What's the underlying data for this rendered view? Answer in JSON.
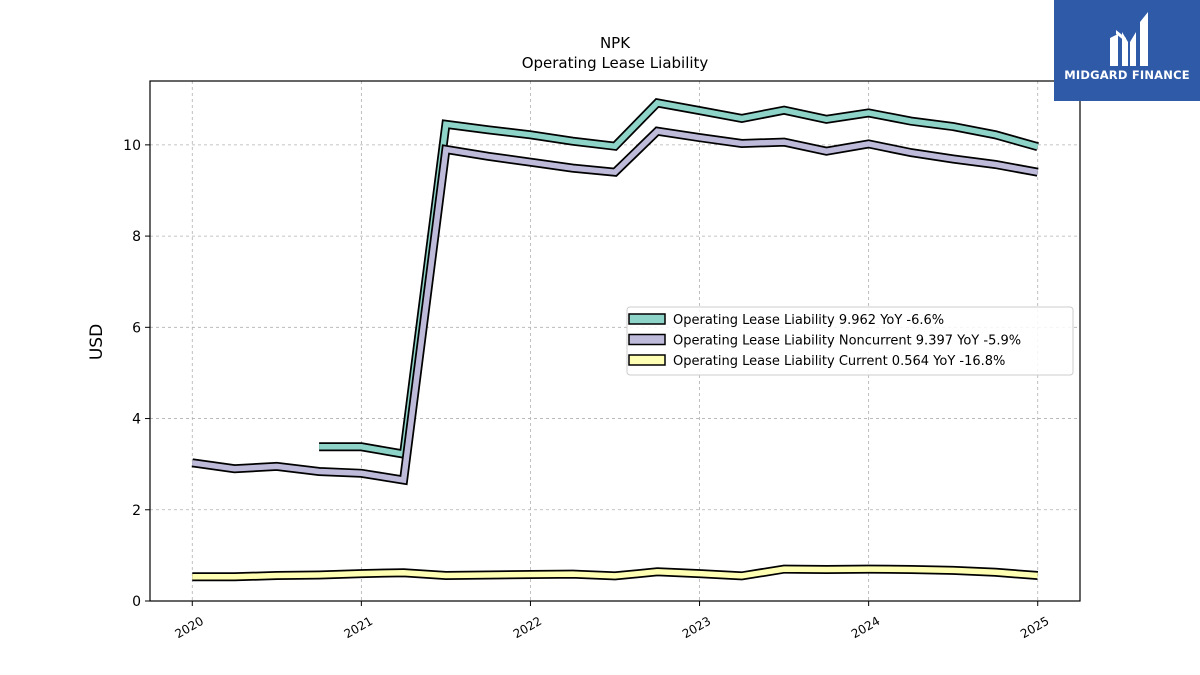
{
  "logo": {
    "text": "MIDGARD FINANCE"
  },
  "chart_data": {
    "type": "line",
    "title": "NPK",
    "subtitle": "Operating Lease Liability",
    "ylabel": "USD",
    "xlabel": "",
    "ylim": [
      0,
      11.4
    ],
    "xlim": [
      2019.75,
      2025.25
    ],
    "yticks": [
      0,
      2,
      4,
      6,
      8,
      10
    ],
    "xticks": [
      "2020",
      "2021",
      "2022",
      "2023",
      "2024",
      "2025"
    ],
    "grid": true,
    "legend_position": "center-right",
    "series": [
      {
        "name": "Operating Lease Liability",
        "legend_label": "Operating Lease Liability  9.962 YoY -6.6%",
        "color": "#8dd3c7",
        "x": [
          2020.75,
          2021.0,
          2021.25,
          2021.5,
          2021.75,
          2022.0,
          2022.25,
          2022.5,
          2022.75,
          2023.0,
          2023.25,
          2023.5,
          2023.75,
          2024.0,
          2024.25,
          2024.5,
          2024.75,
          2025.0
        ],
        "y": [
          3.38,
          3.38,
          3.22,
          10.45,
          10.33,
          10.22,
          10.08,
          9.97,
          10.92,
          10.75,
          10.58,
          10.76,
          10.56,
          10.7,
          10.52,
          10.4,
          10.22,
          9.96
        ]
      },
      {
        "name": "Operating Lease Liability Noncurrent",
        "legend_label": "Operating Lease Liability Noncurrent  9.397 YoY -5.9%",
        "color": "#bebada",
        "x": [
          2020.0,
          2020.25,
          2020.5,
          2020.75,
          2021.0,
          2021.25,
          2021.5,
          2021.75,
          2022.0,
          2022.25,
          2022.5,
          2022.75,
          2023.0,
          2023.25,
          2023.5,
          2023.75,
          2024.0,
          2024.25,
          2024.5,
          2024.75,
          2025.0
        ],
        "y": [
          3.03,
          2.9,
          2.95,
          2.84,
          2.8,
          2.65,
          9.9,
          9.75,
          9.62,
          9.49,
          9.4,
          10.3,
          10.16,
          10.03,
          10.06,
          9.86,
          10.02,
          9.83,
          9.69,
          9.57,
          9.4
        ]
      },
      {
        "name": "Operating Lease Liability Current",
        "legend_label": "Operating Lease Liability Current  0.564 YoY -16.8%",
        "color": "#ffffb3",
        "x": [
          2020.0,
          2020.25,
          2020.5,
          2020.75,
          2021.0,
          2021.25,
          2021.5,
          2021.75,
          2022.0,
          2022.25,
          2022.5,
          2022.75,
          2023.0,
          2023.25,
          2023.5,
          2023.75,
          2024.0,
          2024.25,
          2024.5,
          2024.75,
          2025.0
        ],
        "y": [
          0.53,
          0.53,
          0.56,
          0.57,
          0.6,
          0.62,
          0.56,
          0.57,
          0.58,
          0.59,
          0.55,
          0.64,
          0.6,
          0.55,
          0.7,
          0.69,
          0.7,
          0.69,
          0.67,
          0.63,
          0.56
        ]
      }
    ]
  }
}
